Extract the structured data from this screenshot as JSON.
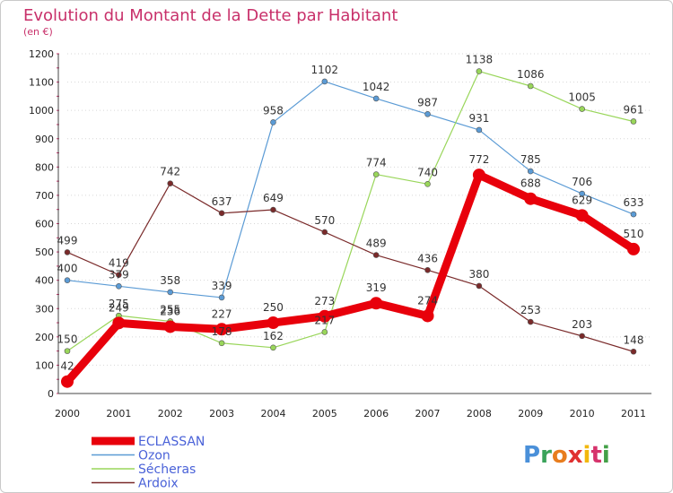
{
  "title": "Evolution du Montant de la Dette par Habitant",
  "subtitle": "(en €)",
  "logo": {
    "text": "Proxiti",
    "colors": [
      "#4a90d9",
      "#3aa35a",
      "#e87d1e",
      "#e03131",
      "#f2b70c",
      "#d6336c",
      "#43a047"
    ]
  },
  "chart_data": {
    "type": "line",
    "title": "Evolution du Montant de la Dette par Habitant",
    "ylabel": "(en €)",
    "x": [
      "2000",
      "2001",
      "2002",
      "2003",
      "2004",
      "2005",
      "2006",
      "2007",
      "2008",
      "2009",
      "2010",
      "2011"
    ],
    "ylim": [
      0,
      1200
    ],
    "yticks": [
      0,
      100,
      200,
      300,
      400,
      500,
      600,
      700,
      800,
      900,
      1000,
      1100,
      1200
    ],
    "grid": "horizontal dotted",
    "legend_position": "bottom-left",
    "series": [
      {
        "name": "Ozon",
        "color": "#5b9bd5",
        "values": [
          400,
          379,
          358,
          339,
          958,
          1102,
          1042,
          987,
          931,
          785,
          706,
          633
        ]
      },
      {
        "name": "Sécheras",
        "color": "#99d65a",
        "values": [
          150,
          275,
          255,
          178,
          162,
          217,
          774,
          740,
          1138,
          1086,
          1005,
          961
        ]
      },
      {
        "name": "Ardoix",
        "color": "#7a2a2a",
        "values": [
          499,
          419,
          742,
          637,
          649,
          570,
          489,
          436,
          380,
          253,
          203,
          148
        ]
      },
      {
        "name": "ECLASSAN",
        "color": "#e8000b",
        "values": [
          42,
          249,
          236,
          227,
          250,
          273,
          319,
          274,
          772,
          688,
          629,
          510
        ]
      }
    ]
  }
}
